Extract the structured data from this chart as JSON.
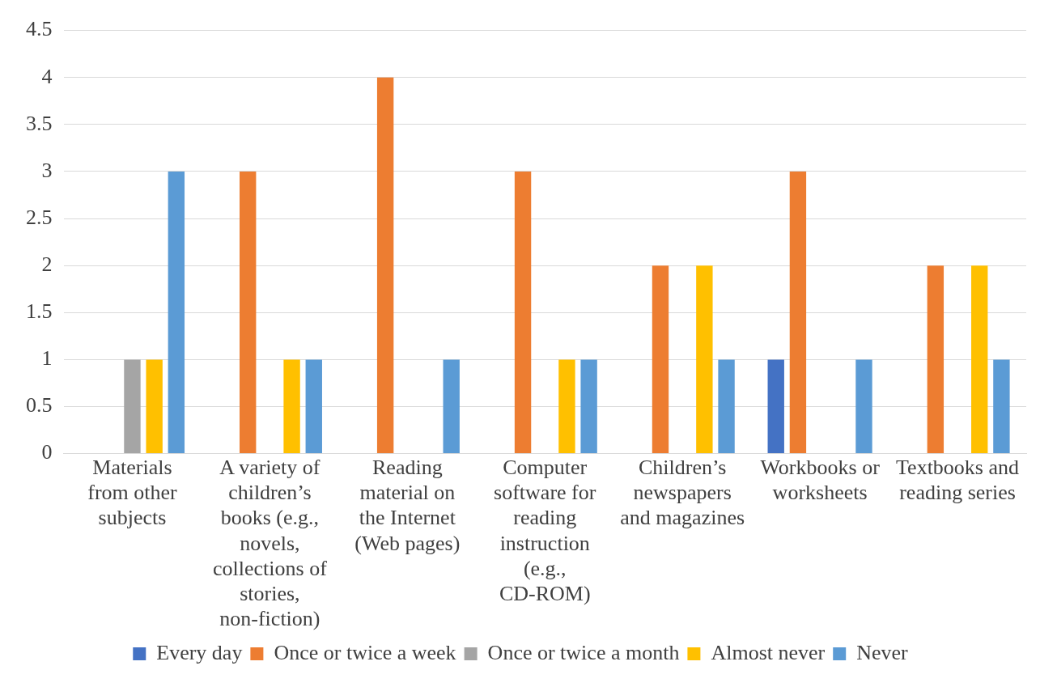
{
  "chart_data": {
    "type": "bar",
    "categories": [
      "Materials from other subjects",
      "A variety of children’s books (e.g., novels, collections of stories, non-fiction)",
      "Reading material on the Internet (Web pages)",
      "Computer software for reading instruction (e.g., CD-ROM)",
      "Children’s newspapers and magazines",
      "Workbooks or worksheets",
      "Textbooks and reading series"
    ],
    "series": [
      {
        "name": "Every day",
        "color": "#4472c4",
        "values": [
          0,
          0,
          0,
          0,
          0,
          1,
          0
        ]
      },
      {
        "name": "Once or twice a week",
        "color": "#ed7d31",
        "values": [
          0,
          3,
          4,
          3,
          2,
          3,
          2
        ]
      },
      {
        "name": "Once or twice a month",
        "color": "#a5a5a5",
        "values": [
          1,
          0,
          0,
          0,
          0,
          0,
          0
        ]
      },
      {
        "name": "Almost never",
        "color": "#ffc000",
        "values": [
          1,
          1,
          0,
          1,
          2,
          0,
          2
        ]
      },
      {
        "name": "Never",
        "color": "#5b9bd5",
        "values": [
          3,
          1,
          1,
          1,
          1,
          1,
          1
        ]
      }
    ],
    "ylim": [
      0,
      4.5
    ],
    "yticks": [
      0,
      0.5,
      1,
      1.5,
      2,
      2.5,
      3,
      3.5,
      4,
      4.5
    ],
    "grid": "y",
    "legend": "bottom"
  }
}
